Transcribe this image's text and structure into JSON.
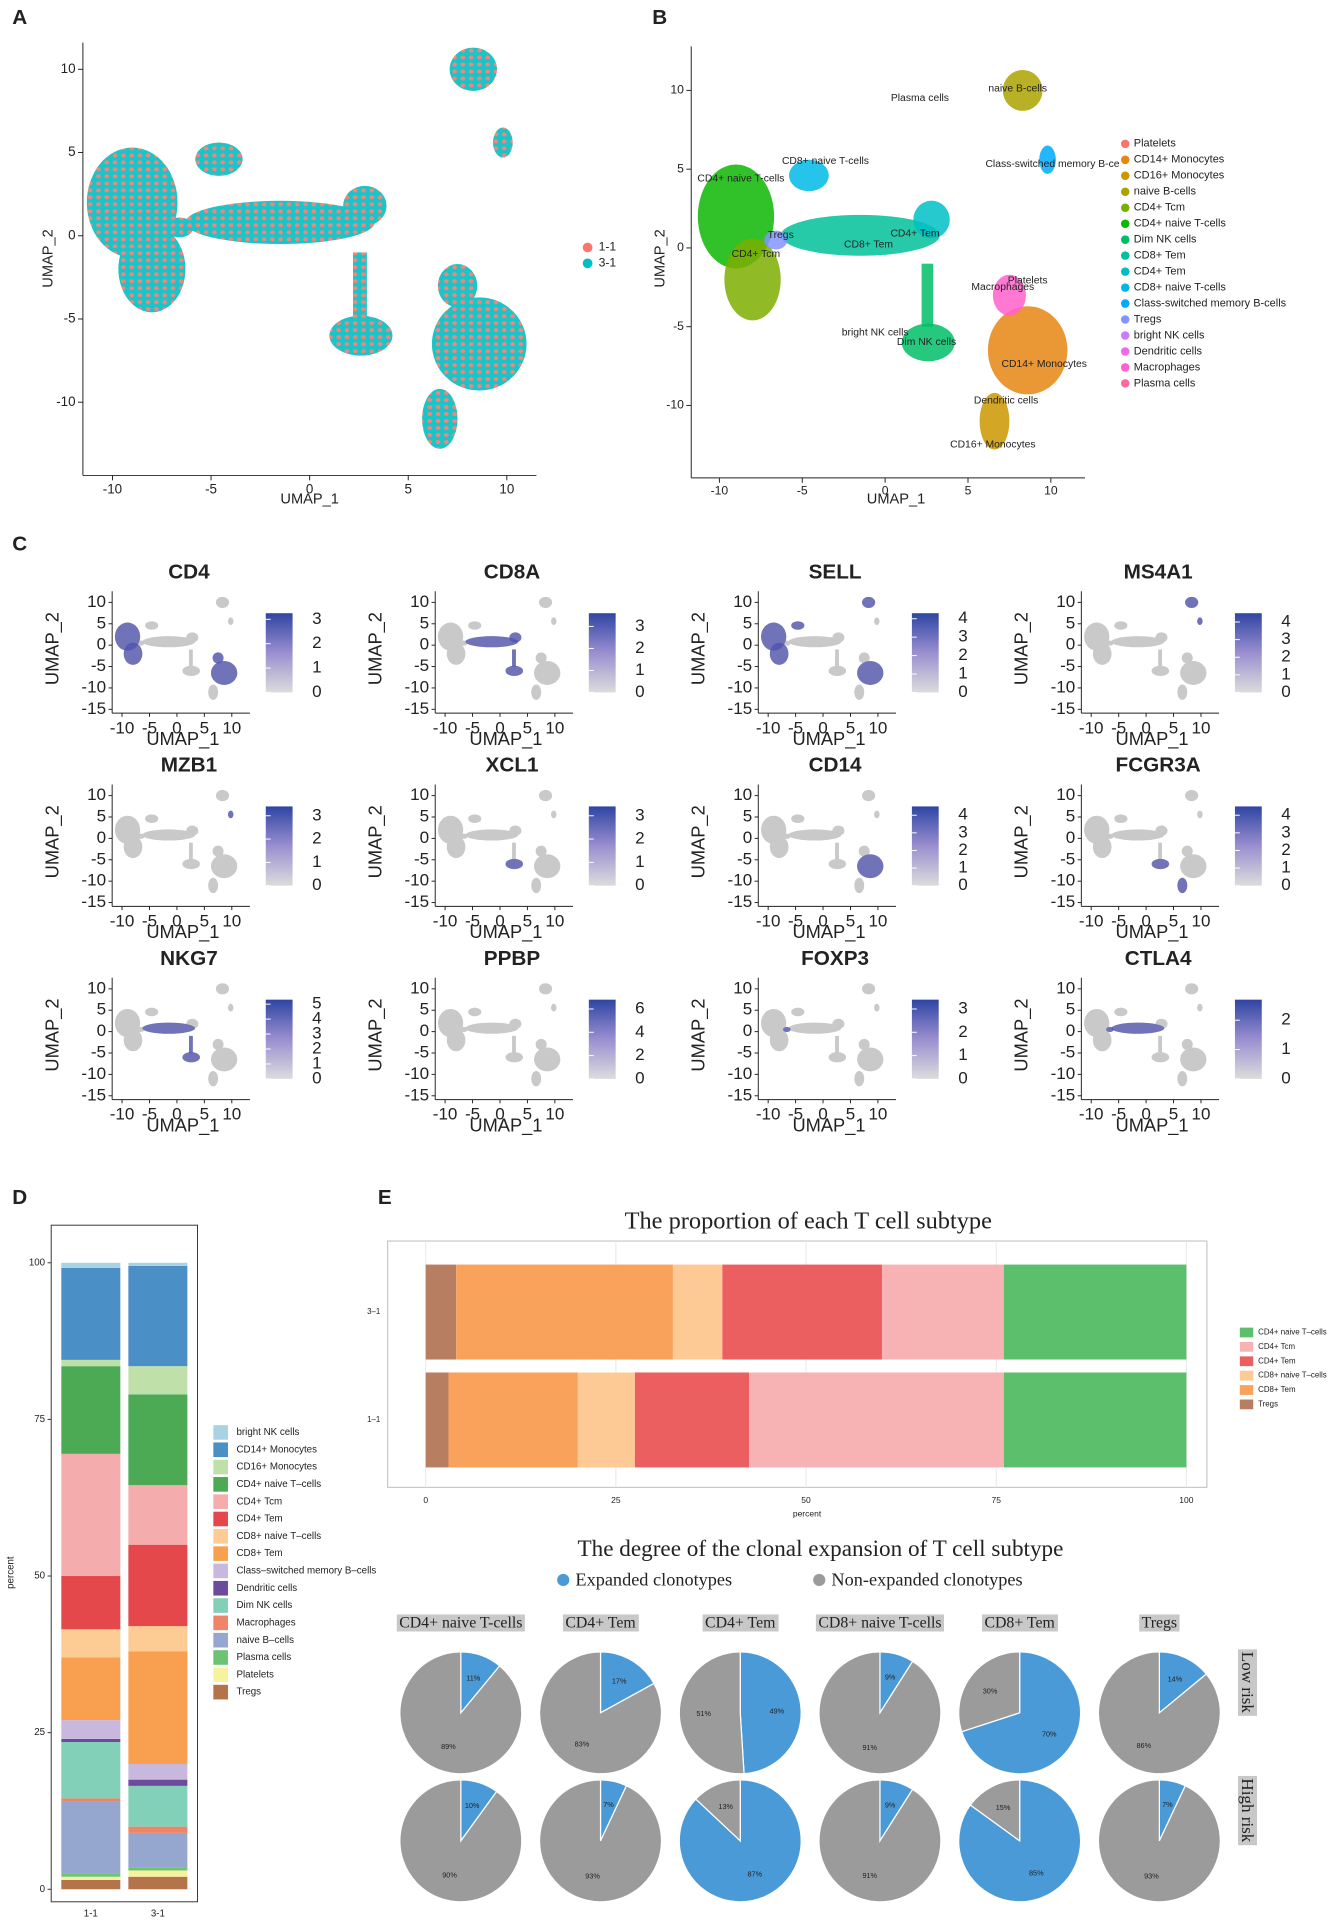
{
  "chart_data": [
    {
      "panel": "A",
      "type": "umap",
      "xlabel": "UMAP_1",
      "ylabel": "UMAP_2",
      "xlim": [
        -11.5,
        11.5
      ],
      "ylim": [
        -14.4,
        11.6
      ],
      "xticks": [
        -10,
        -5,
        0,
        5,
        10
      ],
      "yticks": [
        -10,
        -5,
        0,
        5,
        10
      ],
      "series": [
        {
          "name": "1-1",
          "color": "#f8766d"
        },
        {
          "name": "3-1",
          "color": "#00bfc4"
        }
      ]
    },
    {
      "panel": "B",
      "type": "umap",
      "xlabel": "UMAP_1",
      "ylabel": "UMAP_2",
      "xlim": [
        -11.7,
        12.06
      ],
      "ylim": [
        -14.6,
        12.8
      ],
      "xticks": [
        -10,
        -5,
        0,
        5,
        10
      ],
      "yticks": [
        -10,
        -5,
        0,
        5,
        10
      ],
      "clusters": [
        {
          "name": "Platelets",
          "color": "#f8766d",
          "x": 8.6,
          "y": -2.1
        },
        {
          "name": "CD14+ Monocytes",
          "color": "#e68613",
          "x": 9.6,
          "y": -7.4
        },
        {
          "name": "CD16+ Monocytes",
          "color": "#cd9600",
          "x": 6.5,
          "y": -12.5
        },
        {
          "name": "naive B-cells",
          "color": "#aba300",
          "x": 8.0,
          "y": 10.1
        },
        {
          "name": "CD4+ Tcm",
          "color": "#7cae00",
          "x": -7.8,
          "y": -0.4
        },
        {
          "name": "CD4+ naive T-cells",
          "color": "#0cb702",
          "x": -8.7,
          "y": 4.4
        },
        {
          "name": "Dim NK cells",
          "color": "#00be67",
          "x": 2.5,
          "y": -6.0
        },
        {
          "name": "CD8+ Tem",
          "color": "#00c19a",
          "x": -1.0,
          "y": 0.2
        },
        {
          "name": "CD4+ Tem",
          "color": "#00bfc4",
          "x": 1.8,
          "y": 0.9
        },
        {
          "name": "CD8+ naive T-cells",
          "color": "#00b8e7",
          "x": -3.6,
          "y": 5.5
        },
        {
          "name": "Class-switched memory B-cells",
          "label": "Class-switched memory B-ce",
          "color": "#00a9ff",
          "x": 10.1,
          "y": 5.3
        },
        {
          "name": "Tregs",
          "color": "#8494ff",
          "x": -6.3,
          "y": 0.8
        },
        {
          "name": "bright NK cells",
          "color": "#c77cff",
          "x": -0.6,
          "y": -5.4
        },
        {
          "name": "Dendritic cells",
          "color": "#ed68ed",
          "x": 7.3,
          "y": -9.7
        },
        {
          "name": "Macrophages",
          "color": "#ff61cc",
          "x": 7.1,
          "y": -2.5
        },
        {
          "name": "Plasma cells",
          "color": "#ff68a1",
          "x": 2.1,
          "y": 9.5
        }
      ]
    },
    {
      "panel": "C",
      "type": "feature",
      "xlabel": "UMAP_1",
      "ylabel": "UMAP_2",
      "xlim": [
        -11.8,
        13.3
      ],
      "ylim": [
        -15.9,
        12.6
      ],
      "xticks": [
        -10,
        -5,
        0,
        5,
        10
      ],
      "yticks": [
        -15,
        -10,
        -5,
        0,
        5,
        10
      ],
      "panels": [
        {
          "title": "CD4",
          "lim": [
            0,
            3.25
          ],
          "ticks": [
            0,
            1,
            2,
            3
          ]
        },
        {
          "title": "CD8A",
          "lim": [
            0,
            3.6
          ],
          "ticks": [
            0,
            1,
            2,
            3
          ]
        },
        {
          "title": "SELL",
          "lim": [
            0,
            4.3
          ],
          "ticks": [
            0,
            1,
            2,
            3,
            4
          ]
        },
        {
          "title": "MS4A1",
          "lim": [
            0,
            4.5
          ],
          "ticks": [
            0,
            1,
            2,
            3,
            4
          ]
        },
        {
          "title": "MZB1",
          "lim": [
            0,
            3.4
          ],
          "ticks": [
            0,
            1,
            2,
            3
          ]
        },
        {
          "title": "XCL1",
          "lim": [
            0,
            3.4
          ],
          "ticks": [
            0,
            1,
            2,
            3
          ]
        },
        {
          "title": "CD14",
          "lim": [
            0,
            4.5
          ],
          "ticks": [
            0,
            1,
            2,
            3,
            4
          ]
        },
        {
          "title": "FCGR3A",
          "lim": [
            0,
            4.5
          ],
          "ticks": [
            0,
            1,
            2,
            3,
            4
          ]
        },
        {
          "title": "NKG7",
          "lim": [
            0,
            5.3
          ],
          "ticks": [
            0,
            1,
            2,
            3,
            4,
            5
          ]
        },
        {
          "title": "PPBP",
          "lim": [
            0,
            6.8
          ],
          "ticks": [
            0,
            2,
            4,
            6
          ]
        },
        {
          "title": "FOXP3",
          "lim": [
            0,
            3.4
          ],
          "ticks": [
            0,
            1,
            2,
            3
          ]
        },
        {
          "title": "CTLA4",
          "lim": [
            0,
            2.7
          ],
          "ticks": [
            0,
            1,
            2
          ]
        }
      ]
    },
    {
      "panel": "D",
      "type": "stacked_bar",
      "ylabel": "percent",
      "categories": [
        "1-1",
        "3-1"
      ],
      "ylim": [
        -2,
        106
      ],
      "yticks": [
        0,
        25,
        50,
        75,
        100
      ],
      "series": [
        {
          "name": "bright NK cells",
          "color": "#a9d3e2",
          "values": [
            0.8,
            0.5
          ]
        },
        {
          "name": "CD14+ Monocytes",
          "color": "#4a8fc6",
          "values": [
            14.7,
            16
          ]
        },
        {
          "name": "CD16+ Monocytes",
          "color": "#bfe0a8",
          "values": [
            1,
            4.5
          ]
        },
        {
          "name": "CD4+ naive T–cells",
          "color": "#4caa55",
          "values": [
            14,
            14.5
          ]
        },
        {
          "name": "CD4+ Tcm",
          "color": "#f5acac",
          "values": [
            19.5,
            9.5
          ]
        },
        {
          "name": "CD4+ Tem",
          "color": "#e4484a",
          "values": [
            8.5,
            13
          ]
        },
        {
          "name": "CD8+ naive T–cells",
          "color": "#fdcc95",
          "values": [
            4.5,
            4
          ]
        },
        {
          "name": "CD8+ Tem",
          "color": "#f9a050",
          "values": [
            10,
            18
          ]
        },
        {
          "name": "Class–switched memory B–cells",
          "color": "#c9b8de",
          "values": [
            3,
            2.5
          ]
        },
        {
          "name": "Dendritic cells",
          "color": "#6d4a9e",
          "values": [
            0.5,
            1
          ]
        },
        {
          "name": "Dim NK cells",
          "color": "#82d0b8",
          "values": [
            9,
            6.5
          ]
        },
        {
          "name": "Macrophages",
          "color": "#f08466",
          "values": [
            0.5,
            1
          ]
        },
        {
          "name": "naive B–cells",
          "color": "#95a6cf",
          "values": [
            11.5,
            5.5
          ]
        },
        {
          "name": "Plasma cells",
          "color": "#6cc472",
          "values": [
            0.5,
            0.5
          ]
        },
        {
          "name": "Platelets",
          "color": "#f7f29e",
          "values": [
            0.5,
            1
          ]
        },
        {
          "name": "Tregs",
          "color": "#b5734a",
          "values": [
            1.5,
            2
          ]
        }
      ]
    },
    {
      "panel": "E",
      "type": "stacked_barh",
      "title": "The proportion of each T cell subtype",
      "xlabel": "percent",
      "categories": [
        "1–1",
        "3–1"
      ],
      "xlim": [
        -5,
        102.7
      ],
      "xticks": [
        0,
        25,
        50,
        75,
        100
      ],
      "series": [
        {
          "name": "CD4+ naive T–cells",
          "color": "#5cbf6b",
          "values": [
            24,
            24
          ]
        },
        {
          "name": "CD4+ Tcm",
          "color": "#f7b3b3",
          "values": [
            33.5,
            16
          ]
        },
        {
          "name": "CD4+ Tem",
          "color": "#ec5f60",
          "values": [
            15,
            21
          ]
        },
        {
          "name": "CD8+ naive T–cells",
          "color": "#fdca96",
          "values": [
            7.5,
            6.5
          ]
        },
        {
          "name": "CD8+ Tem",
          "color": "#f9a25b",
          "values": [
            17,
            28.5
          ]
        },
        {
          "name": "Tregs",
          "color": "#b77e62",
          "values": [
            3,
            4
          ]
        }
      ]
    },
    {
      "type": "pie",
      "title": "The degree of the clonal expansion of T cell subtype",
      "series": [
        {
          "name": "Expanded clonotypes",
          "color": "#4a9ad8"
        },
        {
          "name": "Non-expanded clonotypes",
          "color": "#9b9b9b"
        }
      ],
      "columns": [
        "CD4+ naive T-cells",
        "CD4+ Tem",
        "CD4+ Tem",
        "CD8+ naive T-cells",
        "CD8+ Tem",
        "Tregs"
      ],
      "rows": [
        {
          "name": "Low risk",
          "values": [
            [
              11,
              89
            ],
            [
              17,
              83
            ],
            [
              49,
              51
            ],
            [
              9,
              91
            ],
            [
              70,
              30
            ],
            [
              14,
              86
            ]
          ],
          "value_labels": [
            [
              "11%",
              "89%"
            ],
            [
              "17%",
              "83%"
            ],
            [
              "49%",
              "51%"
            ],
            [
              "9%",
              "91%"
            ],
            [
              "70%",
              "30%"
            ],
            [
              "14%",
              "86%"
            ]
          ]
        },
        {
          "name": "High risk",
          "values": [
            [
              10,
              90
            ],
            [
              7,
              93
            ],
            [
              87,
              13
            ],
            [
              9,
              91
            ],
            [
              85,
              15
            ],
            [
              7,
              93
            ]
          ],
          "value_labels": [
            [
              "10%",
              "90%"
            ],
            [
              "7%",
              "93%"
            ],
            [
              "87%",
              "13%"
            ],
            [
              "9%",
              "91%"
            ],
            [
              "85%",
              "15%"
            ],
            [
              "7%",
              "93%"
            ]
          ]
        }
      ]
    }
  ]
}
